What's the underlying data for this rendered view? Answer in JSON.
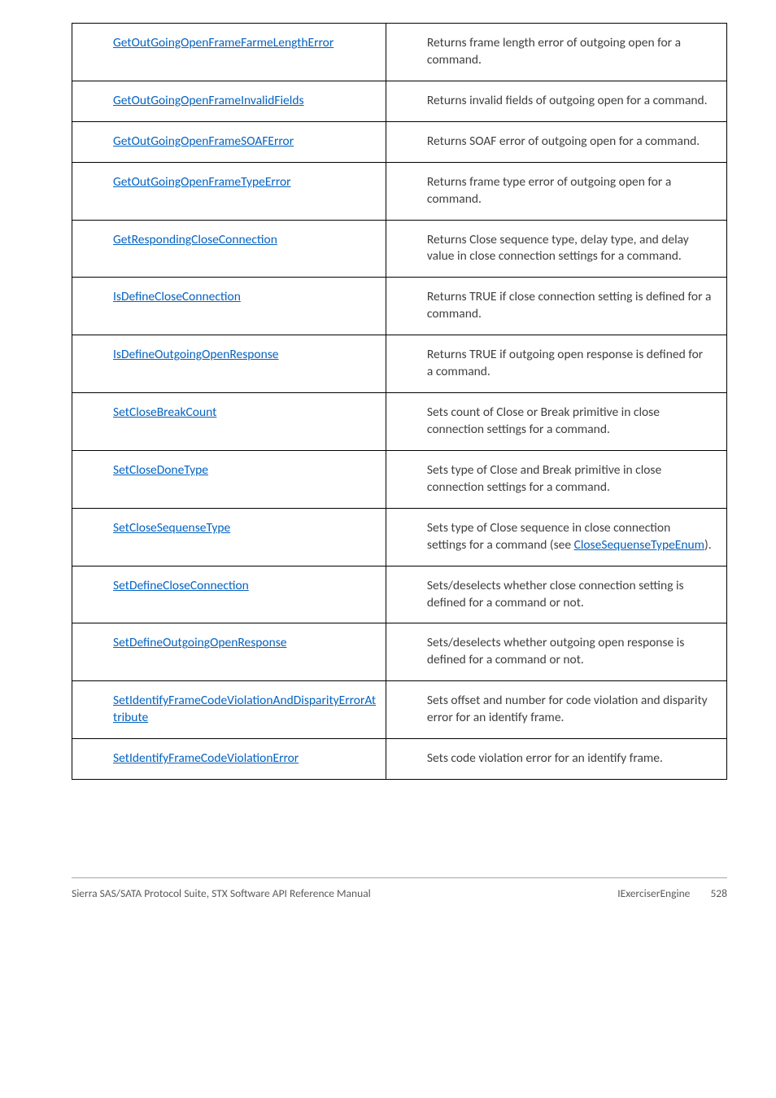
{
  "table": {
    "rows": [
      {
        "link": "GetOutGoingOpenFrameFarmeLengthError",
        "desc": "Returns frame length error of outgoing open for a command."
      },
      {
        "link": "GetOutGoingOpenFrameInvalidFields",
        "desc": "Returns invalid fields of outgoing open for a command."
      },
      {
        "link": "GetOutGoingOpenFrameSOAFError",
        "desc": "Returns SOAF error of outgoing open for a command."
      },
      {
        "link": "GetOutGoingOpenFrameTypeError",
        "desc": "Returns frame type error of outgoing open for a command."
      },
      {
        "link": "GetRespondingCloseConnection",
        "desc": "Returns Close sequence type, delay type, and delay value in close connection settings for a command."
      },
      {
        "link": "IsDefineCloseConnection",
        "desc": "Returns TRUE if close connection setting is defined for a command."
      },
      {
        "link": "IsDefineOutgoingOpenResponse",
        "desc": "Returns TRUE if outgoing open response is defined for a command."
      },
      {
        "link": "SetCloseBreakCount",
        "desc": "Sets count of Close or Break primitive in close connection settings for a command."
      },
      {
        "link": "SetCloseDoneType",
        "desc": "Sets type of Close and Break primitive in close connection settings for a command."
      },
      {
        "link": "SetCloseSequenseType",
        "desc_pre": "Sets type of Close sequence in close connection settings for a command (see ",
        "desc_link": "CloseSequenseTypeEnum",
        "desc_post": ")."
      },
      {
        "link": "SetDefineCloseConnection",
        "desc": "Sets/deselects whether close connection setting is defined for a command or not."
      },
      {
        "link": "SetDefineOutgoingOpenResponse",
        "desc": "Sets/deselects whether outgoing open response is defined for a command or not."
      },
      {
        "link": "SetIdentifyFrameCodeViolationAndDisparityErrorAttribute",
        "desc": "Sets offset and number for code violation and disparity error for an identify frame."
      },
      {
        "link": "SetIdentifyFrameCodeViolationError",
        "desc": "Sets code violation error for an identify frame."
      }
    ]
  },
  "footer": {
    "left": "Sierra SAS/SATA Protocol Suite, STX Software API Reference Manual",
    "right_label": "IExerciserEngine",
    "page_number": "528"
  }
}
